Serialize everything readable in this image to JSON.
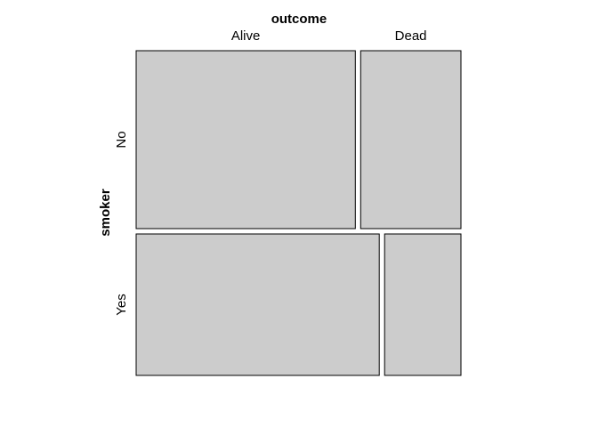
{
  "chart_data": {
    "type": "mosaic",
    "x_variable": "outcome",
    "y_variable": "smoker",
    "column_levels": [
      "Alive",
      "Dead"
    ],
    "row_levels": [
      "No",
      "Yes"
    ],
    "row_totals_share": [
      0.557,
      0.443
    ],
    "cells": [
      {
        "smoker": "No",
        "outcome": "Alive",
        "share_within_row": 0.686
      },
      {
        "smoker": "No",
        "outcome": "Dead",
        "share_within_row": 0.314
      },
      {
        "smoker": "Yes",
        "outcome": "Alive",
        "share_within_row": 0.761
      },
      {
        "smoker": "Yes",
        "outcome": "Dead",
        "share_within_row": 0.239
      }
    ],
    "tile_color": "#cccccc",
    "border_color": "#000000"
  }
}
